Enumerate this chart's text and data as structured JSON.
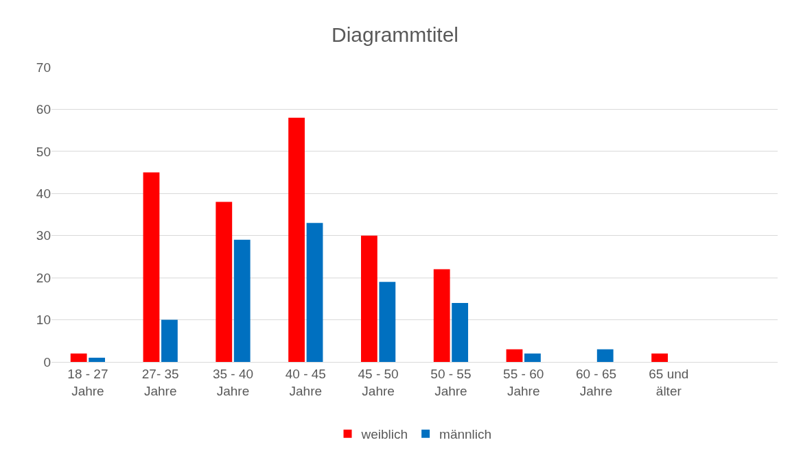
{
  "chart_data": {
    "type": "bar",
    "title": "Diagrammtitel",
    "categories": [
      "18 - 27 Jahre",
      "27- 35 Jahre",
      "35 - 40 Jahre",
      "40 - 45 Jahre",
      "45 - 50 Jahre",
      "50 - 55 Jahre",
      "55 - 60 Jahre",
      "60 - 65 Jahre",
      "65 und älter",
      null
    ],
    "series": [
      {
        "name": "weiblich",
        "color": "#ff0000",
        "values": [
          2,
          45,
          38,
          58,
          30,
          22,
          3,
          null,
          2,
          null
        ]
      },
      {
        "name": "männlich",
        "color": "#0070c0",
        "values": [
          1,
          10,
          29,
          33,
          19,
          14,
          2,
          3,
          null,
          null
        ]
      }
    ],
    "ylim": [
      0,
      70
    ],
    "yticks": [
      0,
      10,
      20,
      30,
      40,
      50,
      60,
      70
    ],
    "grid": "y",
    "legend": "bottom"
  }
}
